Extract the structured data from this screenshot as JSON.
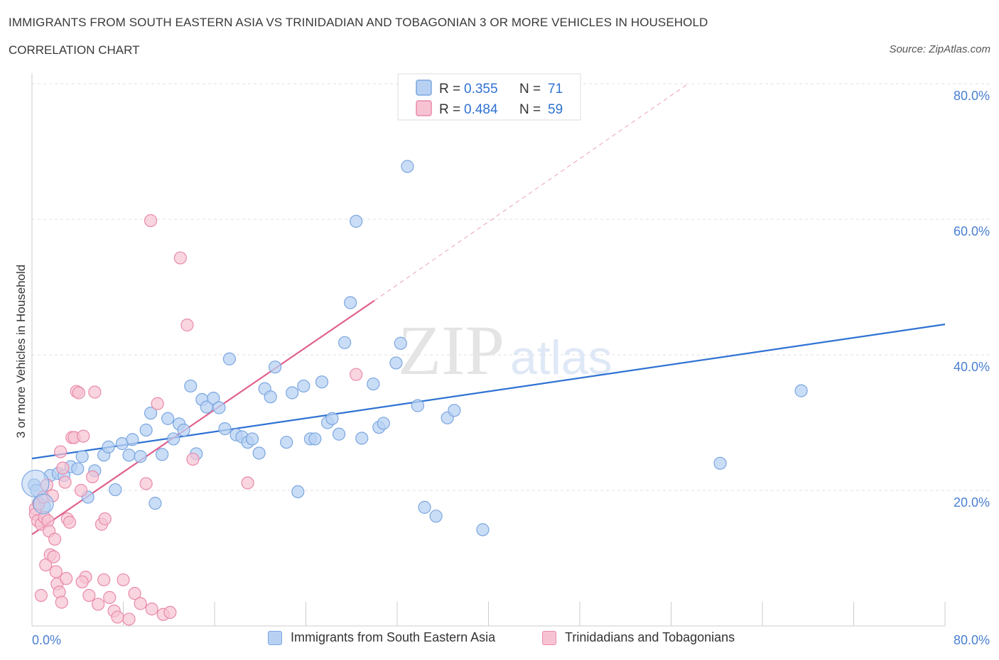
{
  "title": "IMMIGRANTS FROM SOUTH EASTERN ASIA VS TRINIDADIAN AND TOBAGONIAN 3 OR MORE VEHICLES IN HOUSEHOLD",
  "subtitle": "CORRELATION CHART",
  "source": "Source: ZipAtlas.com",
  "watermark": {
    "zip": "ZIP",
    "atlas": "atlas"
  },
  "legend": {
    "series1": {
      "r_label": "R =",
      "r_value": "0.355",
      "n_label": "N =",
      "n_value": "71"
    },
    "series2": {
      "r_label": "R =",
      "r_value": "0.484",
      "n_label": "N =",
      "n_value": "59"
    }
  },
  "bottom_legend": {
    "series1": "Immigrants from South Eastern Asia",
    "series2": "Trinidadians and Tobagonians"
  },
  "colors": {
    "blue_fill": "#b8d1f3",
    "blue_stroke": "#7aa6e0",
    "blue_line": "#2f72d3",
    "pink_fill": "#f7c3d3",
    "pink_stroke": "#e98aa9",
    "pink_line": "#e0608e",
    "tick_label": "#4a7fd0",
    "grid": "#e2e2e2"
  },
  "chart_data": {
    "type": "scatter",
    "title": "IMMIGRANTS FROM SOUTH EASTERN ASIA VS TRINIDADIAN AND TOBAGONIAN 3 OR MORE VEHICLES IN HOUSEHOLD",
    "subtitle": "CORRELATION CHART",
    "xlabel": "",
    "ylabel": "3 or more Vehicles in Household",
    "xlim": [
      0,
      80
    ],
    "ylim": [
      0,
      80
    ],
    "x_tick_labels": [
      "0.0%",
      "80.0%"
    ],
    "y_ticks": [
      20,
      40,
      60,
      80
    ],
    "y_tick_labels": [
      "20.0%",
      "40.0%",
      "60.0%",
      "80.0%"
    ],
    "grid": true,
    "legend_position": "top-center",
    "series": [
      {
        "name": "Immigrants from South Eastern Asia",
        "color": "#b8d1f3",
        "R": 0.355,
        "N": 71,
        "trendline": {
          "x": [
            0,
            80
          ],
          "y": [
            24.7,
            44.5
          ],
          "style": "solid"
        },
        "points": [
          [
            0.2,
            20.8
          ],
          [
            0.4,
            20.0
          ],
          [
            0.6,
            18.2
          ],
          [
            1.1,
            17.6
          ],
          [
            1.6,
            22.2
          ],
          [
            2.3,
            22.5
          ],
          [
            2.8,
            22.2
          ],
          [
            3.4,
            23.5
          ],
          [
            4.0,
            23.2
          ],
          [
            4.4,
            25.0
          ],
          [
            4.9,
            19.0
          ],
          [
            5.5,
            22.9
          ],
          [
            6.3,
            25.2
          ],
          [
            6.7,
            26.4
          ],
          [
            7.3,
            20.1
          ],
          [
            7.9,
            26.9
          ],
          [
            8.5,
            25.2
          ],
          [
            8.8,
            27.5
          ],
          [
            9.5,
            25.0
          ],
          [
            10.0,
            28.9
          ],
          [
            10.4,
            31.4
          ],
          [
            10.8,
            18.1
          ],
          [
            11.4,
            25.3
          ],
          [
            11.9,
            30.6
          ],
          [
            12.4,
            27.6
          ],
          [
            12.9,
            29.8
          ],
          [
            13.3,
            28.9
          ],
          [
            13.9,
            35.4
          ],
          [
            14.4,
            25.4
          ],
          [
            14.9,
            33.4
          ],
          [
            15.3,
            32.3
          ],
          [
            15.9,
            33.6
          ],
          [
            16.4,
            32.2
          ],
          [
            16.9,
            29.1
          ],
          [
            17.3,
            39.4
          ],
          [
            17.9,
            28.2
          ],
          [
            18.4,
            27.9
          ],
          [
            18.9,
            27.1
          ],
          [
            19.3,
            27.6
          ],
          [
            19.9,
            25.5
          ],
          [
            20.4,
            35.0
          ],
          [
            20.9,
            33.8
          ],
          [
            21.3,
            38.2
          ],
          [
            22.3,
            27.1
          ],
          [
            22.8,
            34.4
          ],
          [
            23.3,
            19.8
          ],
          [
            23.8,
            35.4
          ],
          [
            24.4,
            27.6
          ],
          [
            24.8,
            27.6
          ],
          [
            25.4,
            36.0
          ],
          [
            25.9,
            30.0
          ],
          [
            26.3,
            30.6
          ],
          [
            26.9,
            28.3
          ],
          [
            27.4,
            41.8
          ],
          [
            27.9,
            47.7
          ],
          [
            28.4,
            59.7
          ],
          [
            28.9,
            27.7
          ],
          [
            29.9,
            35.7
          ],
          [
            30.4,
            29.3
          ],
          [
            30.8,
            29.9
          ],
          [
            31.9,
            38.8
          ],
          [
            32.3,
            41.7
          ],
          [
            32.9,
            67.8
          ],
          [
            33.8,
            32.5
          ],
          [
            34.4,
            17.5
          ],
          [
            35.4,
            16.2
          ],
          [
            36.4,
            30.7
          ],
          [
            37.0,
            31.8
          ],
          [
            39.5,
            14.2
          ],
          [
            60.3,
            24.0
          ],
          [
            67.4,
            34.7
          ]
        ]
      },
      {
        "name": "Trinidadians and Tobagonians",
        "color": "#f7c3d3",
        "R": 0.484,
        "N": 59,
        "trendline": {
          "x": [
            0,
            30
          ],
          "y": [
            13.5,
            48.0
          ],
          "style": "solid",
          "extended_to": [
            57.5,
            80.0
          ],
          "extended_style": "dashed"
        },
        "points": [
          [
            0.3,
            17.3
          ],
          [
            0.3,
            16.5
          ],
          [
            0.5,
            15.5
          ],
          [
            0.6,
            18.0
          ],
          [
            0.8,
            15.0
          ],
          [
            1.0,
            19.0
          ],
          [
            1.1,
            16.0
          ],
          [
            1.3,
            20.8
          ],
          [
            1.4,
            15.5
          ],
          [
            1.5,
            14.0
          ],
          [
            1.6,
            10.5
          ],
          [
            1.8,
            19.2
          ],
          [
            2.0,
            12.8
          ],
          [
            2.1,
            8.0
          ],
          [
            2.2,
            6.2
          ],
          [
            2.4,
            5.0
          ],
          [
            2.5,
            25.7
          ],
          [
            2.7,
            23.3
          ],
          [
            2.9,
            21.2
          ],
          [
            3.1,
            15.8
          ],
          [
            3.3,
            15.3
          ],
          [
            3.5,
            27.8
          ],
          [
            3.7,
            27.8
          ],
          [
            3.9,
            34.6
          ],
          [
            4.1,
            34.4
          ],
          [
            4.3,
            20.0
          ],
          [
            4.5,
            28.0
          ],
          [
            4.7,
            7.2
          ],
          [
            5.0,
            4.5
          ],
          [
            5.3,
            22.0
          ],
          [
            5.5,
            34.5
          ],
          [
            5.8,
            3.2
          ],
          [
            6.1,
            15.0
          ],
          [
            6.4,
            15.8
          ],
          [
            6.8,
            4.2
          ],
          [
            7.2,
            2.2
          ],
          [
            7.5,
            1.3
          ],
          [
            8.0,
            6.8
          ],
          [
            8.5,
            1.0
          ],
          [
            9.0,
            4.8
          ],
          [
            9.5,
            3.3
          ],
          [
            10.0,
            21.0
          ],
          [
            10.5,
            2.5
          ],
          [
            11.0,
            32.8
          ],
          [
            11.5,
            1.7
          ],
          [
            12.1,
            2.0
          ],
          [
            13.0,
            54.3
          ],
          [
            13.6,
            44.4
          ],
          [
            14.1,
            24.6
          ],
          [
            10.4,
            59.8
          ],
          [
            18.9,
            21.1
          ],
          [
            28.4,
            37.1
          ],
          [
            0.8,
            4.5
          ],
          [
            1.2,
            9.0
          ],
          [
            1.9,
            10.2
          ],
          [
            2.6,
            3.5
          ],
          [
            3.0,
            7.0
          ],
          [
            4.4,
            6.5
          ],
          [
            6.3,
            6.8
          ]
        ]
      }
    ]
  }
}
